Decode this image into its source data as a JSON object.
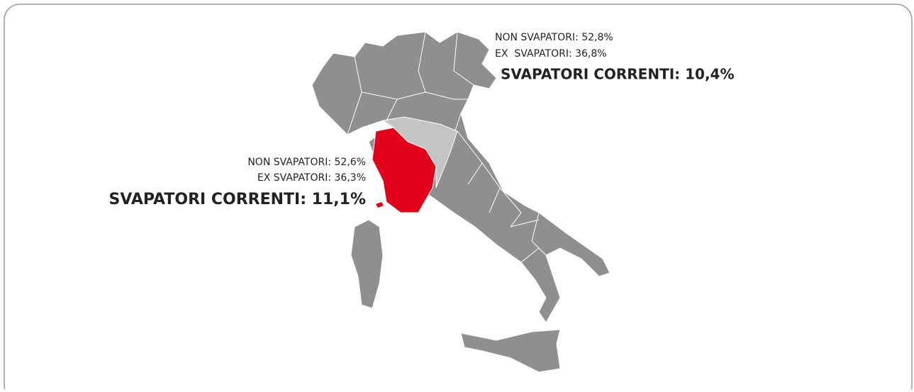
{
  "labels": [
    {
      "region": "top",
      "lines": [
        "NON SVAPATORI: 52,8%",
        "EX  SVAPATORI: 36,8%",
        "SVAPATORI CORRENTI: 10,4%"
      ]
    },
    {
      "region": "tuscany",
      "lines": [
        "NON SVAPATORI: 52,6%",
        "EX SVAPATORI: 36,3%",
        "SVAPATORI CORRENTI: 11,1%"
      ]
    }
  ]
}
